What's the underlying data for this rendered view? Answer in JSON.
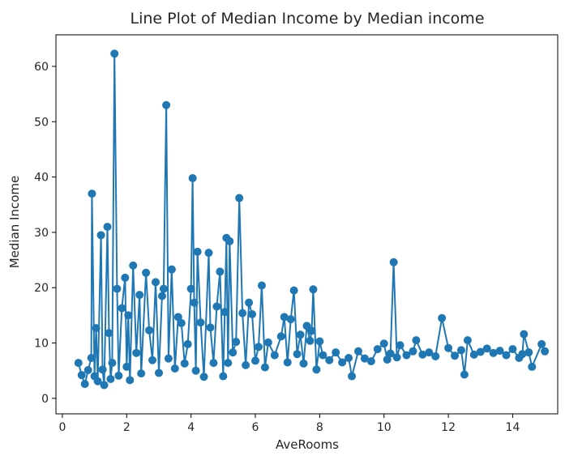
{
  "chart_data": {
    "type": "line",
    "title": "Line Plot of Median Income by Median income",
    "xlabel": "AveRooms",
    "ylabel": "Median Income",
    "xlim": [
      -0.2,
      15.4
    ],
    "ylim": [
      -2.8,
      65.7
    ],
    "xticks": [
      0,
      2,
      4,
      6,
      8,
      10,
      12,
      14
    ],
    "yticks": [
      0,
      10,
      20,
      30,
      40,
      50,
      60
    ],
    "grid": false,
    "marker": "circle",
    "color": "#1f77b4",
    "series": [
      {
        "x": [
          0.5,
          0.6,
          0.7,
          0.8,
          0.9,
          0.92,
          1.0,
          1.05,
          1.1,
          1.2,
          1.25,
          1.3,
          1.4,
          1.45,
          1.5,
          1.55,
          1.62,
          1.7,
          1.75,
          1.85,
          1.95,
          2.0,
          2.05,
          2.1,
          2.2,
          2.3,
          2.4,
          2.45,
          2.6,
          2.7,
          2.8,
          2.9,
          3.0,
          3.1,
          3.15,
          3.23,
          3.3,
          3.4,
          3.5,
          3.6,
          3.7,
          3.8,
          3.9,
          4.0,
          4.05,
          4.1,
          4.15,
          4.2,
          4.3,
          4.4,
          4.55,
          4.6,
          4.7,
          4.8,
          4.9,
          5.0,
          5.05,
          5.1,
          5.15,
          5.2,
          5.3,
          5.4,
          5.5,
          5.6,
          5.7,
          5.8,
          5.9,
          6.0,
          6.1,
          6.2,
          6.3,
          6.4,
          6.6,
          6.8,
          6.9,
          7.0,
          7.1,
          7.2,
          7.3,
          7.4,
          7.5,
          7.6,
          7.7,
          7.75,
          7.8,
          7.9,
          8.0,
          8.1,
          8.3,
          8.5,
          8.7,
          8.9,
          9.0,
          9.2,
          9.4,
          9.6,
          9.8,
          10.0,
          10.1,
          10.2,
          10.3,
          10.4,
          10.5,
          10.7,
          10.9,
          11.0,
          11.2,
          11.4,
          11.6,
          11.8,
          12.0,
          12.2,
          12.4,
          12.5,
          12.6,
          12.8,
          13.0,
          13.2,
          13.4,
          13.6,
          13.8,
          14.0,
          14.2,
          14.3,
          14.35,
          14.5,
          14.6,
          14.9,
          15.0
        ],
        "y": [
          6.4,
          4.2,
          2.6,
          5.1,
          7.3,
          37.0,
          4.0,
          12.7,
          3.1,
          29.5,
          5.2,
          2.4,
          31.0,
          11.8,
          3.5,
          6.4,
          62.3,
          19.8,
          4.1,
          16.3,
          21.8,
          5.7,
          15.0,
          3.3,
          24.0,
          8.2,
          18.7,
          4.5,
          22.7,
          12.3,
          6.9,
          21.0,
          4.6,
          18.5,
          19.8,
          53.0,
          7.2,
          23.3,
          5.4,
          14.7,
          13.6,
          6.3,
          9.8,
          19.8,
          39.8,
          17.3,
          5.0,
          26.5,
          13.7,
          3.9,
          26.3,
          12.8,
          6.4,
          16.6,
          22.9,
          4.0,
          15.6,
          29.0,
          6.4,
          28.4,
          8.3,
          10.2,
          36.2,
          15.4,
          6.0,
          17.3,
          15.2,
          6.8,
          9.3,
          20.4,
          5.6,
          10.1,
          7.8,
          11.2,
          14.7,
          6.5,
          14.3,
          19.5,
          8.0,
          11.5,
          6.3,
          13.1,
          10.4,
          12.2,
          19.7,
          5.2,
          10.3,
          7.8,
          6.9,
          8.3,
          6.5,
          7.3,
          4.0,
          8.5,
          7.2,
          6.7,
          8.9,
          9.9,
          7.0,
          8.1,
          24.6,
          7.4,
          9.6,
          7.8,
          8.5,
          10.5,
          7.9,
          8.3,
          7.6,
          14.5,
          9.1,
          7.7,
          8.7,
          4.3,
          10.5,
          7.9,
          8.4,
          9.0,
          8.2,
          8.6,
          7.8,
          8.9,
          7.3,
          8.0,
          11.6,
          8.3,
          5.7,
          9.8,
          8.5
        ]
      }
    ]
  }
}
